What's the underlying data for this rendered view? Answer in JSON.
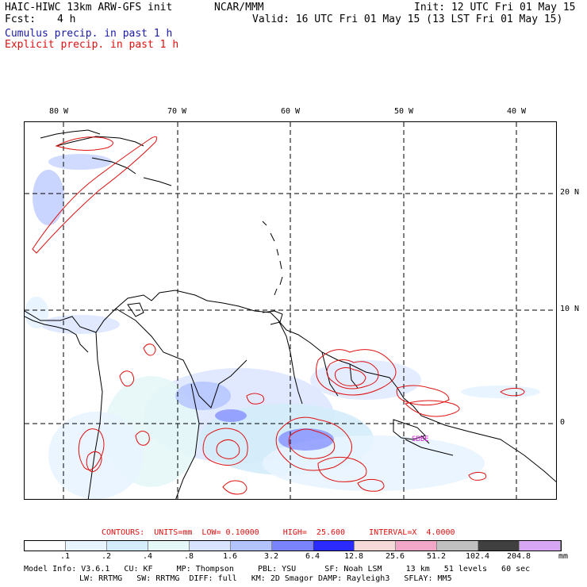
{
  "header": {
    "model": "HAIC-HIWC 13km ARW-GFS init",
    "org": "NCAR/MMM",
    "init": "Init: 12 UTC Fri 01 May 15",
    "fcst_label": "Fcst:",
    "fcst_value": "4 h",
    "valid": "Valid: 16 UTC Fri 01 May 15 (13 LST Fri 01 May 15)",
    "legend_cumulus": "Cumulus precip. in past 1 h",
    "legend_explicit": "Explicit precip. in past 1 h"
  },
  "map": {
    "lon_labels": [
      "80 W",
      "70 W",
      "60 W",
      "50 W",
      "40 W"
    ],
    "lat_labels": [
      "20 N",
      "10 N",
      "0"
    ],
    "place_labels": [
      "SBBE"
    ]
  },
  "contours": {
    "text": "CONTOURS:  UNITS=mm  LOW= 0.10000     HIGH=  25.600     INTERVAL=X  4.0000"
  },
  "colorbar": {
    "tick_labels": [
      ".1",
      ".2",
      ".4",
      ".8",
      "1.6",
      "3.2",
      "6.4",
      "12.8",
      "25.6",
      "51.2",
      "102.4",
      "204.8"
    ],
    "units": "mm",
    "colors": [
      "#ffffff",
      "#e8f4ff",
      "#d4ecfb",
      "#e6f7f7",
      "#d8e4ff",
      "#b3c3ff",
      "#7a84ff",
      "#2b2bff",
      "#f7d9d9",
      "#f2a6c8",
      "#c0c0c0",
      "#404040",
      "#d7a6f5"
    ]
  },
  "model_info": {
    "line1": "Model Info: V3.6.1   CU: KF     MP: Thompson     PBL: YSU      SF: Noah LSM     13 km   51 levels   60 sec",
    "line2": "LW: RRTMG   SW: RRTMG  DIFF: full   KM: 2D Smagor DAMP: Rayleigh3   SFLAY: MM5"
  }
}
